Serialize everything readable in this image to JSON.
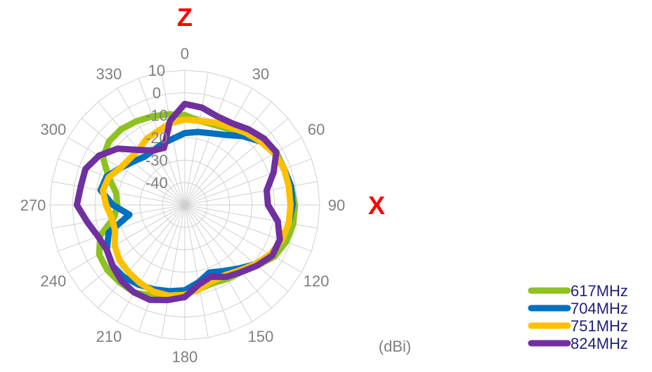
{
  "chart_data": {
    "type": "radar",
    "axis_labels": {
      "top": "Z",
      "right": "X"
    },
    "unit_label": "(dBi)",
    "angle_ticks": [
      "0",
      "30",
      "60",
      "90",
      "120",
      "150",
      "180",
      "210",
      "240",
      "270",
      "300",
      "330"
    ],
    "radial_ticks": [
      "10",
      "0",
      "-10",
      "-20",
      "-30",
      "-40"
    ],
    "rlim": [
      -50,
      10
    ],
    "grid": true,
    "legend_position": "bottom-right",
    "angles_deg": [
      0,
      10,
      20,
      30,
      40,
      50,
      60,
      70,
      80,
      90,
      100,
      110,
      120,
      130,
      140,
      150,
      160,
      170,
      180,
      190,
      200,
      210,
      220,
      230,
      240,
      250,
      260,
      270,
      280,
      290,
      300,
      310,
      320,
      330,
      340,
      350
    ],
    "series": [
      {
        "name": "617MHz",
        "color": "#8dc21f",
        "values": [
          -10,
          -12,
          -12,
          -11,
          -8,
          -5,
          -3,
          -3,
          -2,
          -1,
          -1,
          -2,
          -4,
          -8,
          -11,
          -12,
          -13,
          -12,
          -10,
          -9,
          -7,
          -5,
          -5,
          -5,
          -6,
          -10,
          -18,
          -20,
          -19,
          -14,
          -8,
          -6,
          -6,
          -7,
          -8,
          -9
        ]
      },
      {
        "name": "704MHz",
        "color": "#0070c0",
        "values": [
          -18,
          -17,
          -16,
          -14,
          -10,
          -6,
          -4,
          -3,
          -2,
          -2,
          -3,
          -4,
          -6,
          -9,
          -13,
          -16,
          -18,
          -15,
          -12,
          -11,
          -10,
          -9,
          -8,
          -8,
          -10,
          -14,
          -25,
          -18,
          -12,
          -13,
          -17,
          -20,
          -22,
          -22,
          -21,
          -20
        ]
      },
      {
        "name": "751MHz",
        "color": "#ffc000",
        "values": [
          -12,
          -12,
          -11,
          -10,
          -8,
          -6,
          -4,
          -3,
          -3,
          -3,
          -3,
          -4,
          -6,
          -9,
          -12,
          -14,
          -14,
          -12,
          -10,
          -9,
          -9,
          -10,
          -11,
          -12,
          -14,
          -17,
          -17,
          -15,
          -13,
          -14,
          -17,
          -18,
          -18,
          -16,
          -15,
          -13
        ]
      },
      {
        "name": "824MHz",
        "color": "#7030a0",
        "values": [
          -5,
          -6,
          -8,
          -8,
          -6,
          -4,
          -3,
          -8,
          -13,
          -13,
          -8,
          -5,
          -5,
          -8,
          -11,
          -13,
          -16,
          -14,
          -9,
          -7,
          -5,
          -5,
          -6,
          -8,
          -10,
          -9,
          -6,
          -2,
          -3,
          -3,
          -6,
          -11,
          -18,
          -22,
          -23,
          -12
        ]
      }
    ]
  }
}
